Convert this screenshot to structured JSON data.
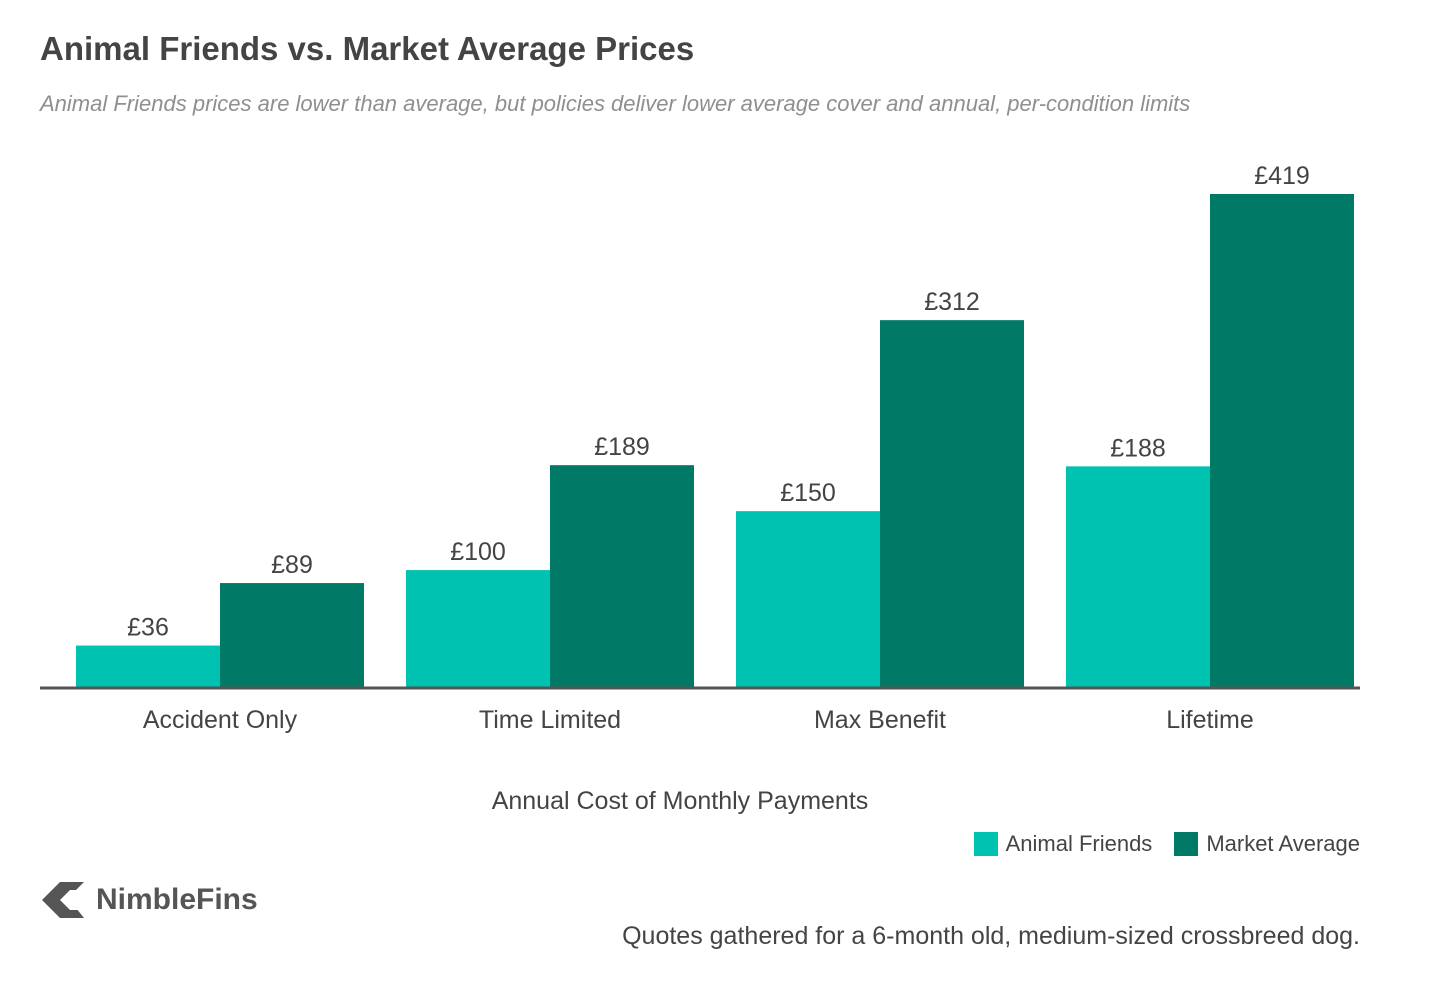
{
  "colors": {
    "animal_friends": "#00c2b0",
    "market_average": "#007a66",
    "axis": "#555555"
  },
  "chart_data": {
    "type": "bar",
    "title": "Animal Friends vs. Market Average Prices",
    "subtitle": "Animal Friends prices are lower than average, but policies deliver lower average cover and annual, per-condition limits",
    "categories": [
      "Accident Only",
      "Time Limited",
      "Max Benefit",
      "Lifetime"
    ],
    "series": [
      {
        "name": "Animal Friends",
        "values": [
          36,
          100,
          150,
          188
        ],
        "labels": [
          "£36",
          "£100",
          "£150",
          "£188"
        ]
      },
      {
        "name": "Market Average",
        "values": [
          89,
          189,
          312,
          419
        ],
        "labels": [
          "£89",
          "£189",
          "£312",
          "£419"
        ]
      }
    ],
    "xlabel": "Annual Cost of Monthly Payments",
    "ylabel": "",
    "ylim": [
      0,
      419
    ],
    "grid": false,
    "legend_position": "bottom-right"
  },
  "branding": {
    "name": "NimbleFins",
    "icon": "nimblefins-chevron-icon"
  },
  "footnote": "Quotes gathered for a 6-month old, medium-sized crossbreed dog."
}
